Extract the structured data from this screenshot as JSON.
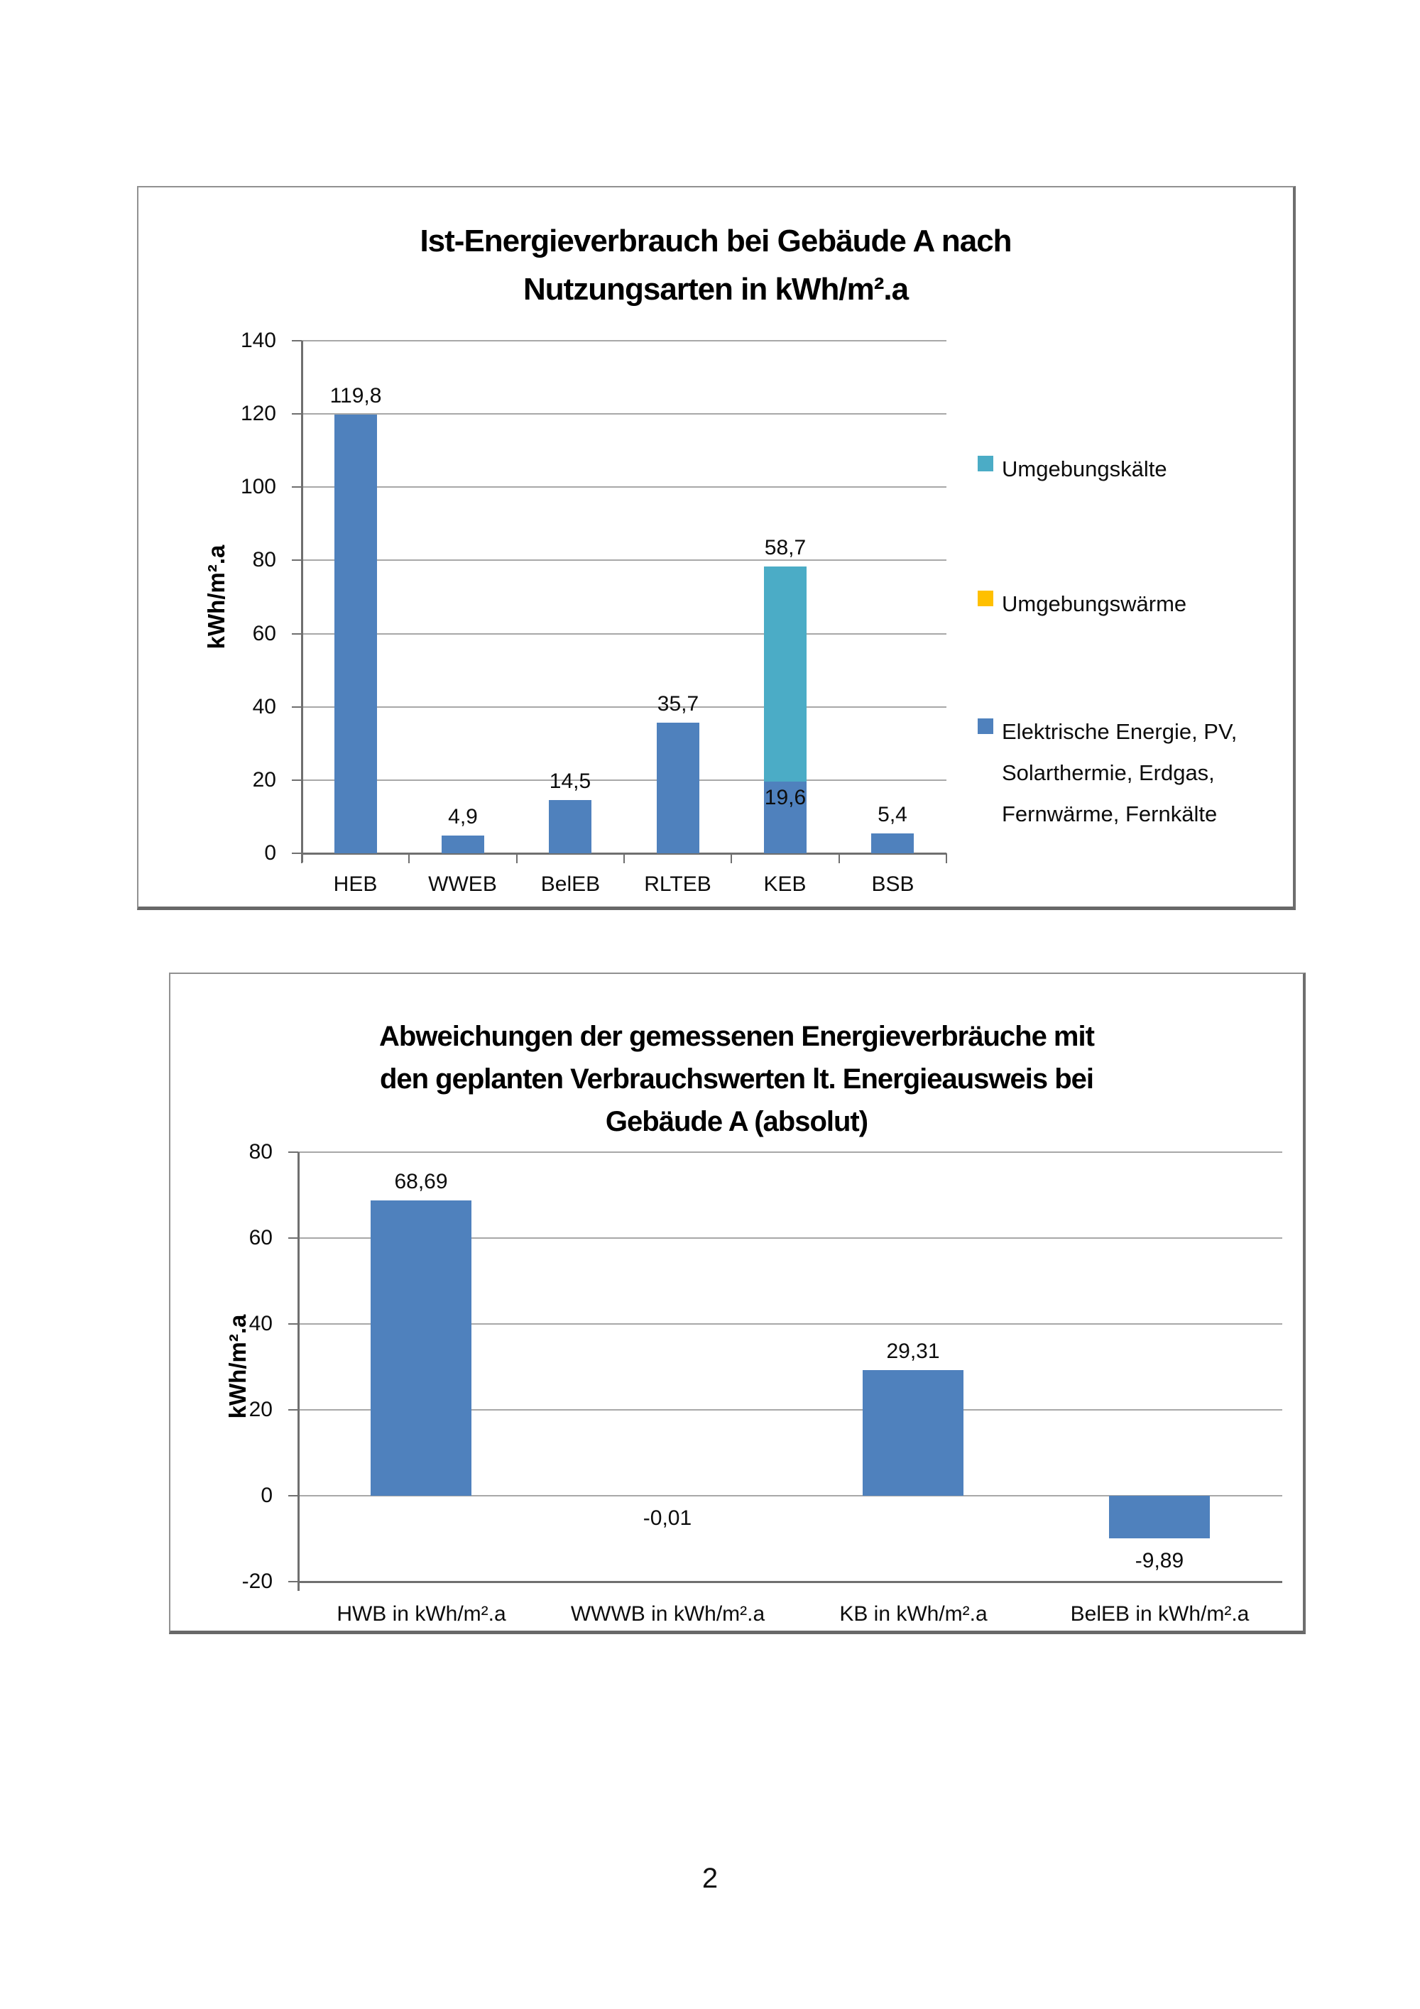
{
  "page": {
    "number": "2"
  },
  "colors": {
    "bar_blue": "#4f81bd",
    "ambient_cold_cyan": "#4bacc6",
    "ambient_heat_gold": "#ffc000",
    "gridline_gray": "#a8a8a8",
    "axis_gray": "#6f6f6f",
    "frame_gray": "#8a8a8a"
  },
  "chart_data": [
    {
      "type": "bar",
      "stacked": true,
      "title": "Ist-Energieverbrauch bei Gebäude A nach Nutzungsarten in kWh/m².a",
      "title_lines": [
        "Ist-Energieverbrauch bei Gebäude A nach",
        "Nutzungsarten in kWh/m².a"
      ],
      "xlabel": "",
      "ylabel": "kWh/m².a",
      "categories": [
        "HEB",
        "WWEB",
        "BelEB",
        "RLTEB",
        "KEB",
        "BSB"
      ],
      "series": [
        {
          "name": "Elektrische Energie, PV, Solarthermie, Erdgas, Fernwärme, Fernkälte",
          "color": "#4f81bd",
          "values": [
            119.8,
            4.9,
            14.5,
            35.7,
            19.6,
            5.4
          ]
        },
        {
          "name": "Umgebungswärme",
          "color": "#ffc000",
          "values": [
            0,
            0,
            0,
            0,
            0,
            0
          ]
        },
        {
          "name": "Umgebungskälte",
          "color": "#4bacc6",
          "values": [
            0,
            0,
            0,
            0,
            58.7,
            0
          ]
        }
      ],
      "bar_labels": [
        "119,8",
        "4,9",
        "14,5",
        "35,7",
        "58,7",
        "5,4"
      ],
      "segment_labels": [
        null,
        null,
        null,
        null,
        "19,6",
        null
      ],
      "ylim": [
        0,
        140
      ],
      "ytick_step": 20,
      "yticks": [
        "0",
        "20",
        "40",
        "60",
        "80",
        "100",
        "120",
        "140"
      ],
      "grid": true,
      "axis_line_at": 0,
      "legend_position": "right",
      "legend": [
        {
          "label": "Umgebungskälte",
          "color": "#4bacc6",
          "lines": [
            "Umgebungskälte"
          ]
        },
        {
          "label": "Umgebungswärme",
          "color": "#ffc000",
          "lines": [
            "Umgebungswärme"
          ]
        },
        {
          "label": "Elektrische Energie, PV, Solarthermie, Erdgas, Fernwärme, Fernkälte",
          "color": "#4f81bd",
          "lines": [
            "Elektrische Energie, PV,",
            "Solarthermie, Erdgas,",
            "Fernwärme, Fernkälte"
          ]
        }
      ]
    },
    {
      "type": "bar",
      "stacked": false,
      "title": "Abweichungen der gemessenen Energieverbräuche mit den geplanten Verbrauchswerten lt. Energieausweis bei Gebäude A (absolut)",
      "title_lines": [
        "Abweichungen der gemessenen Energieverbräuche mit",
        "den geplanten Verbrauchswerten lt. Energieausweis bei",
        "Gebäude A (absolut)"
      ],
      "xlabel": "",
      "ylabel": "kWh/m².a",
      "categories": [
        "HWB in kWh/m².a",
        "WWWB in kWh/m².a",
        "KB in kWh/m².a",
        "BelEB in kWh/m².a"
      ],
      "values": [
        68.69,
        -0.01,
        29.31,
        -9.89
      ],
      "bar_labels": [
        "68,69",
        "-0,01",
        "29,31",
        "-9,89"
      ],
      "bar_color": "#4f81bd",
      "ylim": [
        -20,
        80
      ],
      "ytick_step": 20,
      "yticks": [
        "-20",
        "0",
        "20",
        "40",
        "60",
        "80"
      ],
      "grid": true,
      "axis_line_at": -20,
      "legend_position": "none"
    }
  ]
}
